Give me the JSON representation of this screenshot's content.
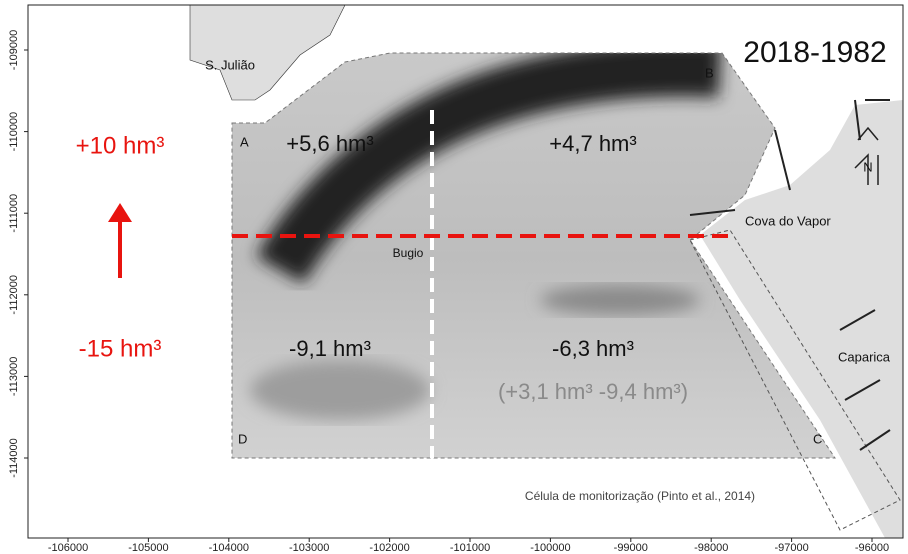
{
  "map": {
    "title": "2018-1982",
    "xticks": [
      -106000,
      -105000,
      -104000,
      -103000,
      -102000,
      -101000,
      -100000,
      -99000,
      -98000,
      -97000,
      -96000
    ],
    "yticks": [
      -109000,
      -110000,
      -111000,
      -112000,
      -113000,
      -114000
    ],
    "corners": [
      "A",
      "B",
      "C",
      "D"
    ],
    "places": {
      "sao_juliao": "S. Julião",
      "bugio": "Bugio",
      "cova_do_vapor": "Cova do Vapor",
      "caparica": "Caparica"
    },
    "volumes": {
      "nw": "+5,6 hm³",
      "ne": "+4,7 hm³",
      "sw": "-9,1 hm³",
      "se": "-6,3 hm³",
      "se_detail": "(+3,1 hm³ -9,4 hm³)"
    },
    "totals": {
      "north": "+10 hm³",
      "south": "-15 hm³"
    },
    "cell_note": "Célula de monitorização (Pinto et al., 2014)",
    "north_label": "N"
  }
}
